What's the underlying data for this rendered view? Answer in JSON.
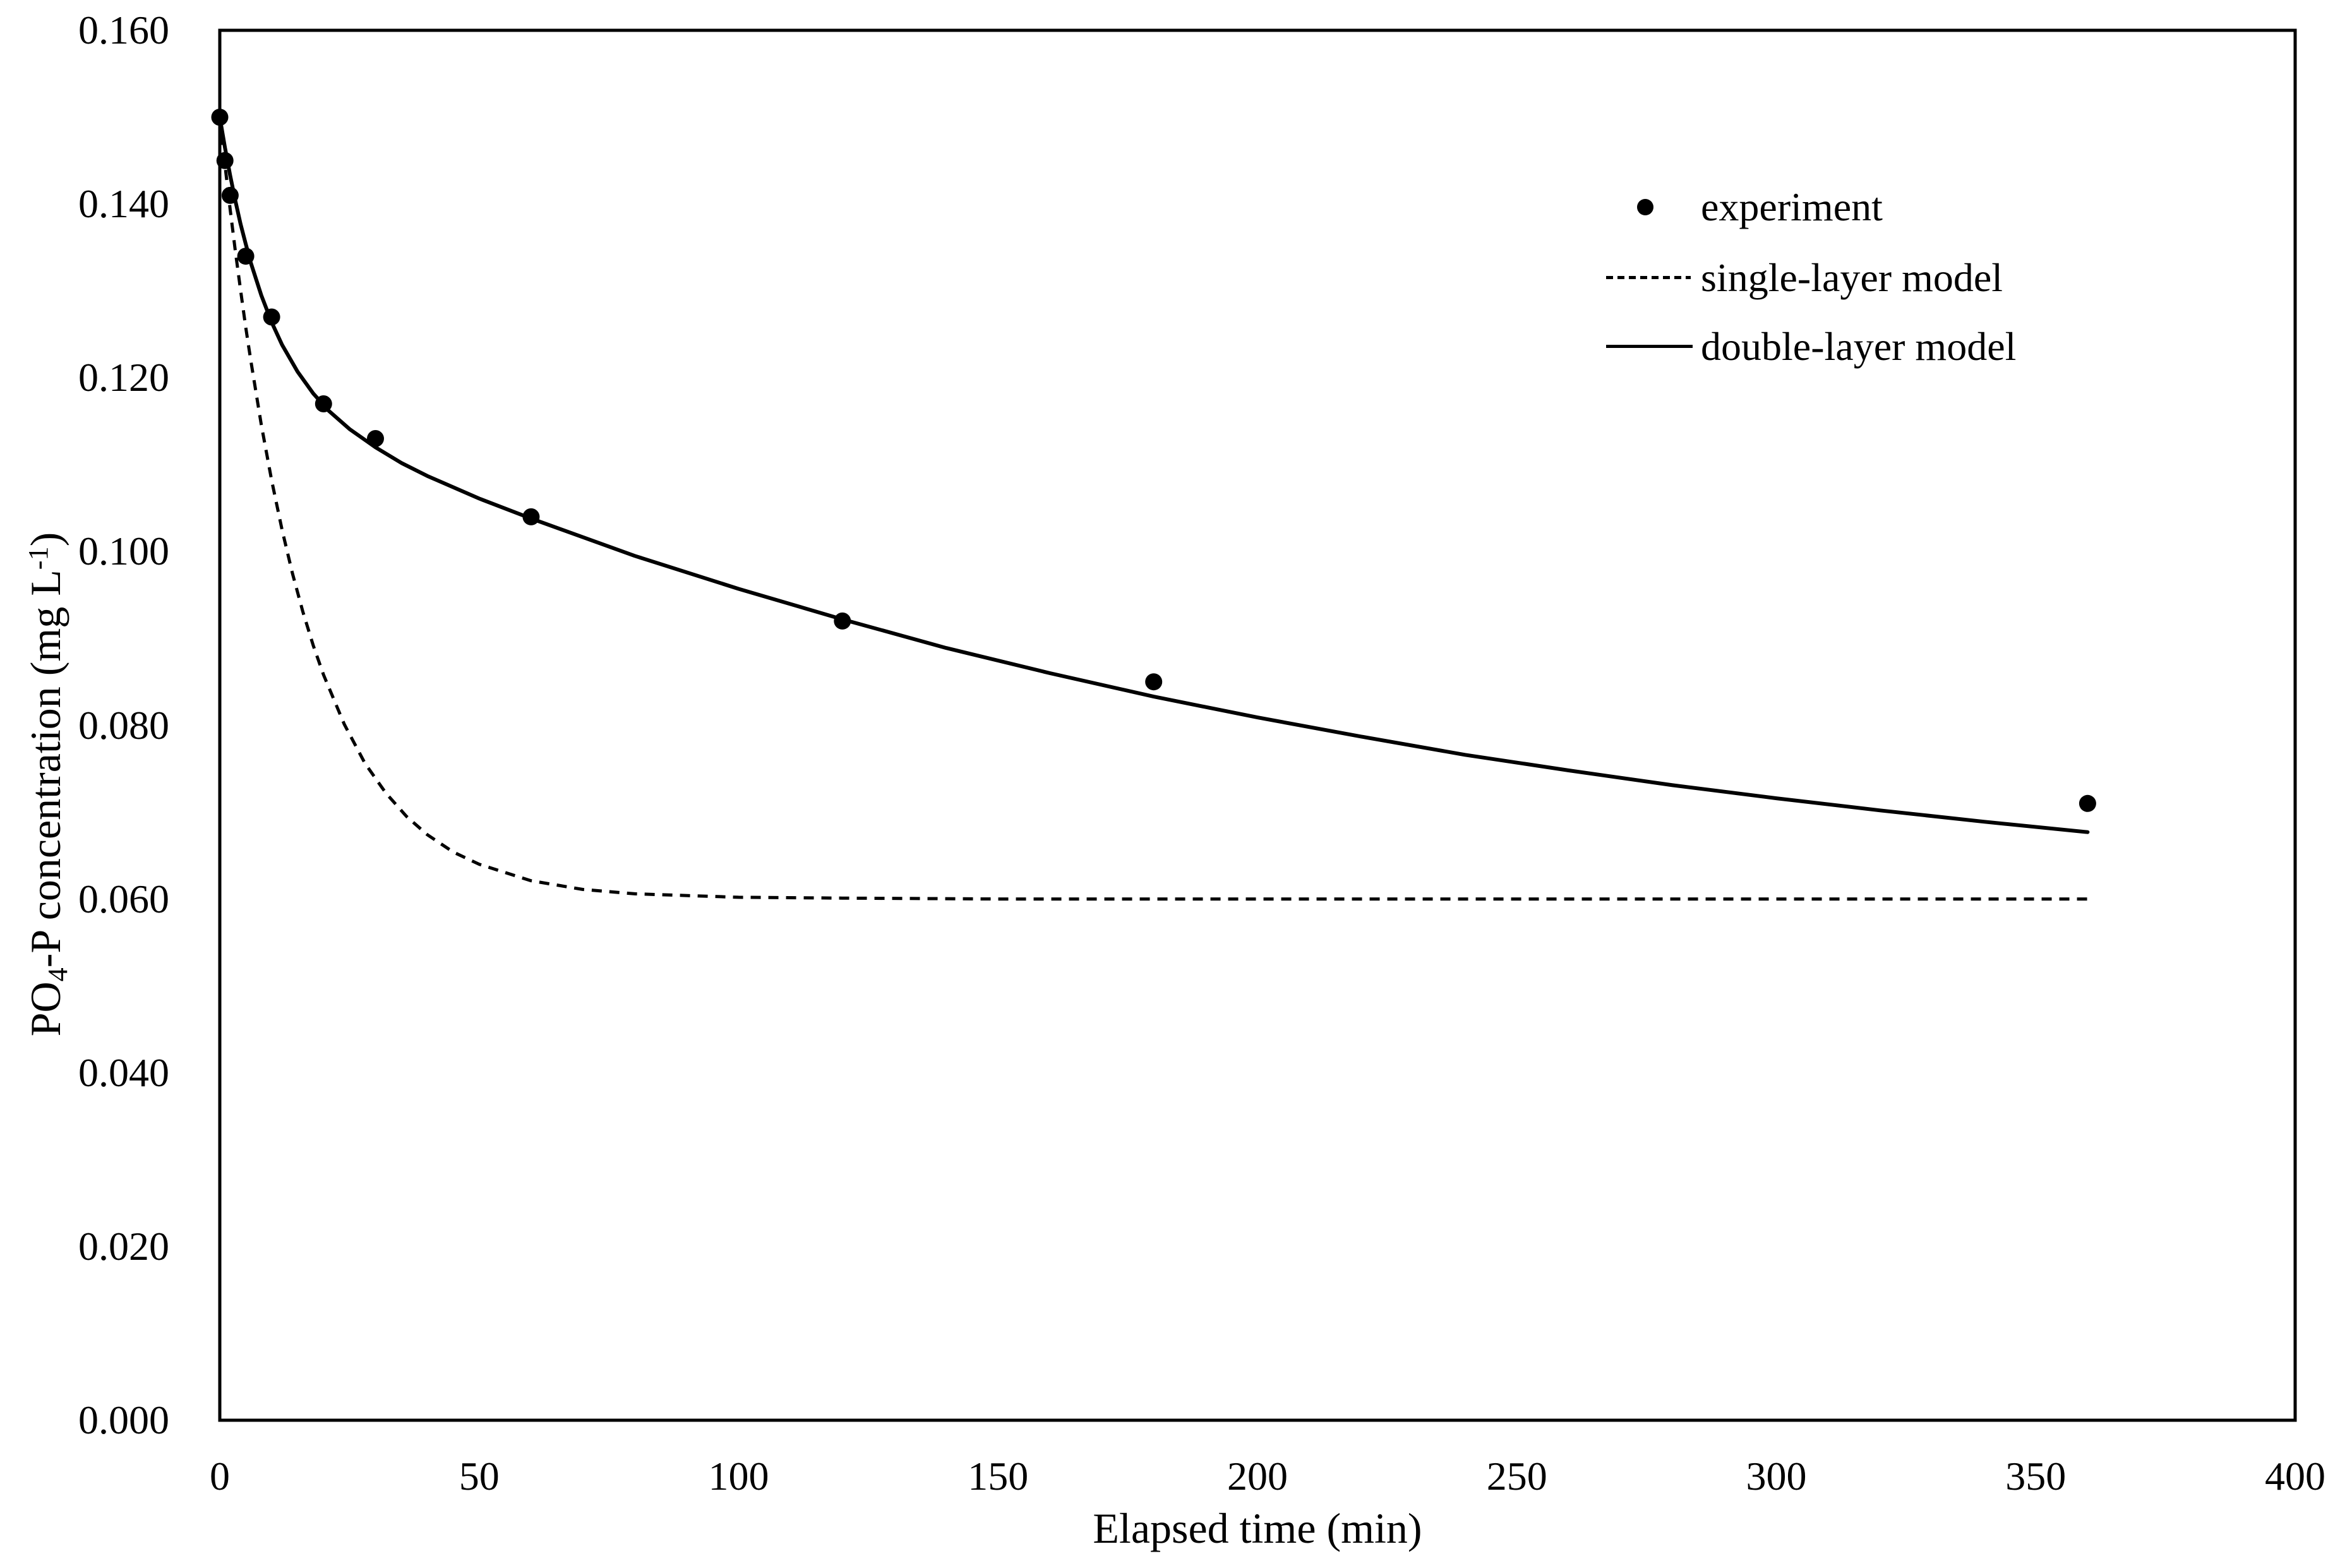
{
  "figure": {
    "background_color": "#ffffff",
    "ink_color": "#000000"
  },
  "chart_data": {
    "type": "line",
    "title": "",
    "xlabel": "Elapsed time (min)",
    "ylabel": "PO4-P concentration (mg L-1)",
    "ylabel_parts": {
      "pre": "PO",
      "sub": "4",
      "mid": "-P concentration (mg L",
      "sup": "-1",
      "post": ")"
    },
    "xlim": [
      0,
      400
    ],
    "ylim": [
      0.0,
      0.16
    ],
    "x_ticks": [
      0,
      50,
      100,
      150,
      200,
      250,
      300,
      350,
      400
    ],
    "y_tick_labels": [
      "0.000",
      "0.020",
      "0.040",
      "0.060",
      "0.080",
      "0.100",
      "0.120",
      "0.140",
      "0.160"
    ],
    "grid": false,
    "legend_position": "upper-right-inside",
    "series": [
      {
        "name": "experiment",
        "type": "scatter",
        "marker": "filled-circle",
        "x": [
          0,
          1,
          2,
          5,
          10,
          20,
          30,
          60,
          120,
          180,
          360
        ],
        "y": [
          0.15,
          0.145,
          0.141,
          0.134,
          0.127,
          0.117,
          0.113,
          0.104,
          0.092,
          0.085,
          0.071
        ]
      },
      {
        "name": "single-layer model",
        "type": "line",
        "style": "dashed",
        "x": [
          0,
          1,
          2,
          3,
          4,
          5,
          6,
          8,
          10,
          12,
          14,
          16,
          18,
          20,
          24,
          28,
          32,
          36,
          40,
          45,
          50,
          60,
          70,
          80,
          100,
          120,
          150,
          200,
          250,
          300,
          360
        ],
        "y": [
          0.15,
          0.1445,
          0.1394,
          0.1346,
          0.1301,
          0.1258,
          0.1219,
          0.1146,
          0.1082,
          0.1025,
          0.0975,
          0.0931,
          0.0892,
          0.0858,
          0.0801,
          0.0756,
          0.0722,
          0.0695,
          0.0674,
          0.0654,
          0.064,
          0.0621,
          0.0611,
          0.0606,
          0.0602,
          0.0601,
          0.06,
          0.06,
          0.06,
          0.06,
          0.06
        ]
      },
      {
        "name": "double-layer model",
        "type": "line",
        "style": "solid",
        "x": [
          0,
          1,
          2,
          3,
          4,
          5,
          6,
          8,
          10,
          12,
          15,
          18,
          21,
          25,
          30,
          35,
          40,
          50,
          60,
          80,
          100,
          120,
          140,
          160,
          180,
          200,
          220,
          240,
          260,
          280,
          300,
          320,
          340,
          360
        ],
        "y": [
          0.15,
          0.1465,
          0.1433,
          0.1404,
          0.1377,
          0.1354,
          0.1332,
          0.1295,
          0.1264,
          0.1238,
          0.1207,
          0.1182,
          0.1162,
          0.1141,
          0.112,
          0.1102,
          0.1087,
          0.1061,
          0.1038,
          0.0995,
          0.0957,
          0.0922,
          0.0889,
          0.086,
          0.0833,
          0.0809,
          0.0787,
          0.0766,
          0.0748,
          0.0731,
          0.0716,
          0.0702,
          0.0689,
          0.0677
        ]
      }
    ]
  },
  "legend": {
    "items": [
      {
        "label": "experiment",
        "marker": "dot"
      },
      {
        "label": "single-layer model",
        "marker": "dashed-line"
      },
      {
        "label": "double-layer model",
        "marker": "solid-line"
      }
    ]
  }
}
